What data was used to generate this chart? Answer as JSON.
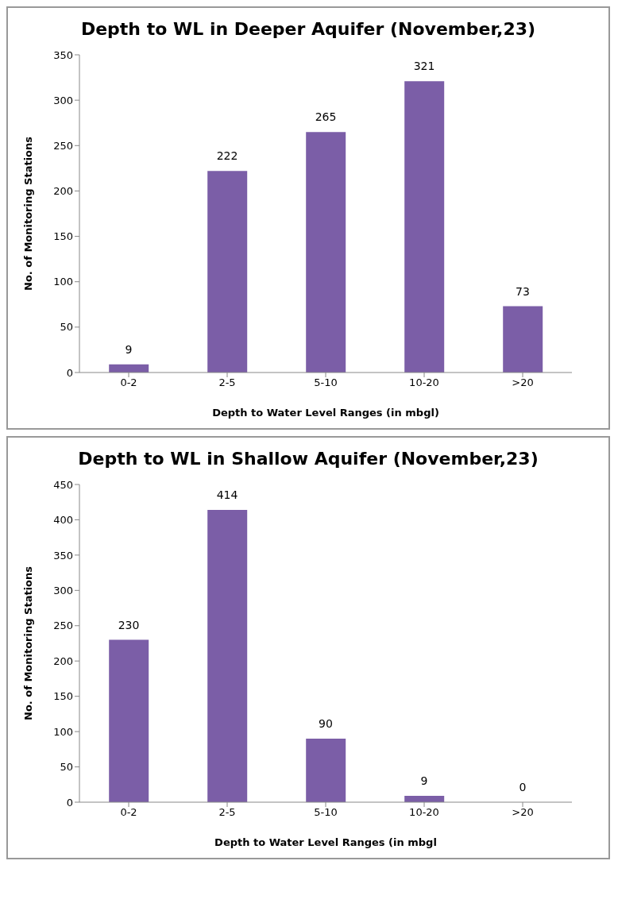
{
  "chart_data": [
    {
      "type": "bar",
      "title": "Depth to WL in Deeper Aquifer (November,23)",
      "xlabel": "Depth to Water Level Ranges (in mbgl)",
      "ylabel": "No. of Monitoring Stations",
      "categories": [
        "0-2",
        "2-5",
        "5-10",
        "10-20",
        ">20"
      ],
      "values": [
        9,
        222,
        265,
        321,
        73
      ],
      "color": "#7b5ea7",
      "ylim": [
        0,
        350
      ],
      "yticks": [
        0,
        50,
        100,
        150,
        200,
        250,
        300,
        350
      ],
      "data_labels": true
    },
    {
      "type": "bar",
      "title": "Depth to WL in Shallow Aquifer (November,23)",
      "xlabel": "Depth to Water Level Ranges (in mbgl",
      "ylabel": "No. of Monitoring Stations",
      "categories": [
        "0-2",
        "2-5",
        "5-10",
        "10-20",
        ">20"
      ],
      "values": [
        230,
        414,
        90,
        9,
        0
      ],
      "color": "#7b5ea7",
      "ylim": [
        0,
        450
      ],
      "yticks": [
        0,
        50,
        100,
        150,
        200,
        250,
        300,
        350,
        400,
        450
      ],
      "data_labels": true
    }
  ]
}
